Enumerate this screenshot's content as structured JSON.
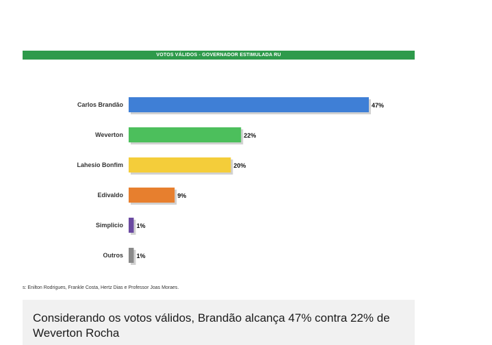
{
  "chart_data": {
    "type": "bar",
    "orientation": "horizontal",
    "title": "VOTOS VÁLIDOS - GOVERNADOR ESTIMULADA RU",
    "categories": [
      "Carlos Brandão",
      "Weverton",
      "Lahesio Bonfim",
      "Edivaldo",
      "Simplicio",
      "Outros"
    ],
    "values": [
      47,
      22,
      20,
      9,
      1,
      1
    ],
    "value_labels": [
      "47%",
      "22%",
      "20%",
      "9%",
      "1%",
      "1%"
    ],
    "bar_colors": [
      "#3f7fd6",
      "#4cbf5c",
      "#f4cd3a",
      "#e77f2e",
      "#6b4aa1",
      "#8a8a8a"
    ],
    "xlim": [
      0,
      47
    ],
    "grid": false,
    "legend": "none"
  },
  "source_note": "s: Enilton Rodrigues, Frankle Costa, Hertz Dias e Professor Joas Moraes.",
  "caption": "Considerando os votos válidos, Brandão alcança 47% contra 22% de Weverton Rocha",
  "colors": {
    "header_green": "#2e9a4b",
    "caption_bg": "#f1f1f1"
  }
}
